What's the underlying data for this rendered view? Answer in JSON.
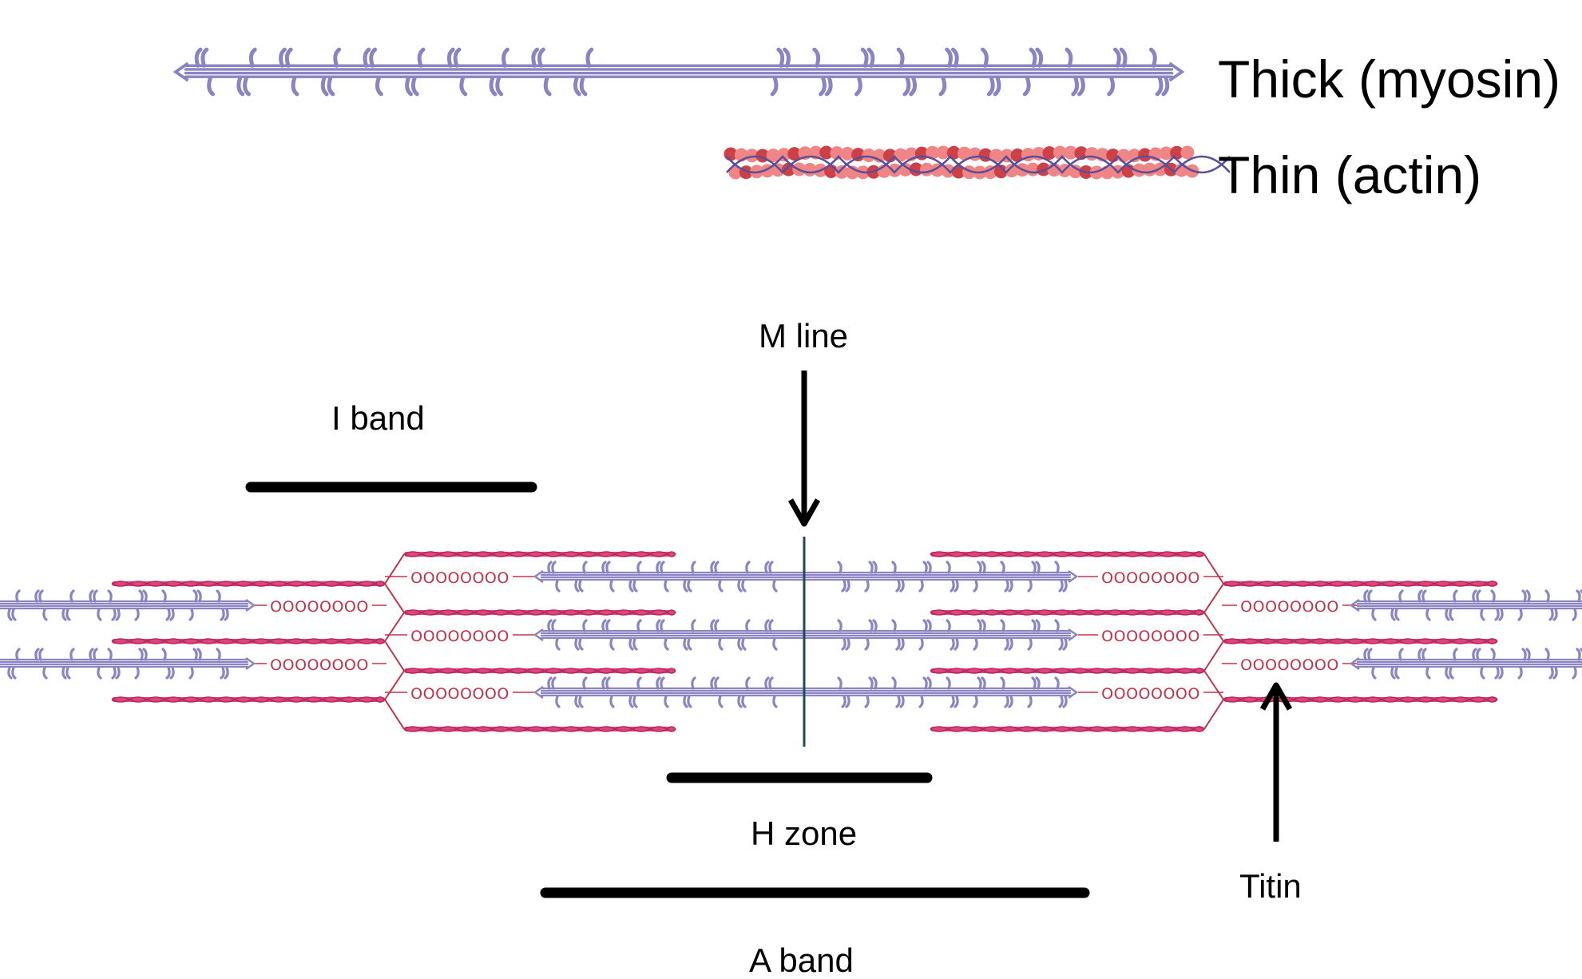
{
  "legend": {
    "thick_label": "Thick (myosin)",
    "thin_label": "Thin (actin)"
  },
  "labels": {
    "m_line": "M line",
    "i_band": "I band",
    "h_zone": "H zone",
    "a_band": "A band",
    "titin": "Titin"
  },
  "titin_coil_text": "OOOOOOOO",
  "colors": {
    "myosin": "#8a85c2",
    "myosin_dark": "#6e68aa",
    "actin": "#e0447c",
    "actin_dark": "#b5285e",
    "titin": "#c0334a",
    "legend_actin_light": "#f08585",
    "legend_actin_dark": "#cc4048",
    "m_line": "#1f4a57",
    "marker": "#000000"
  }
}
